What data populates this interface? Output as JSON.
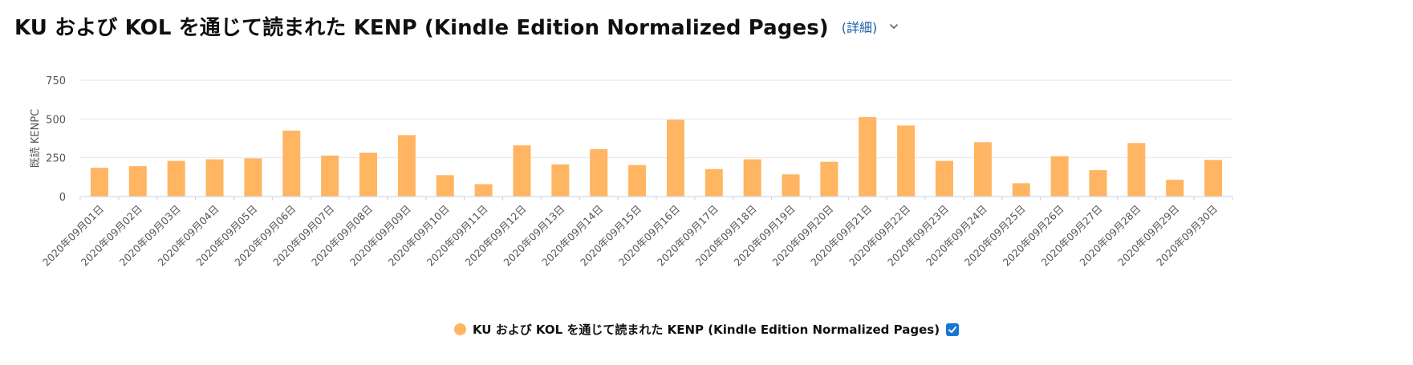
{
  "header": {
    "title": "KU および KOL を通じて読まれた KENP (Kindle Edition Normalized Pages)",
    "details_label": "(詳細)"
  },
  "colors": {
    "bar": "#ffb562",
    "grid": "#e6e6e6",
    "axis": "#c7d3e0",
    "text": "#555555",
    "link": "#1a5fa8",
    "check": "#1976d2"
  },
  "legend": {
    "label": "KU および KOL を通じて読まれた KENP (Kindle Edition Normalized Pages)",
    "checked": true
  },
  "chart_data": {
    "type": "bar",
    "ylabel": "既読 KENPC",
    "ylim": [
      0,
      750
    ],
    "yticks": [
      0,
      250,
      500,
      750
    ],
    "grid": true,
    "legend_position": "bottom",
    "categories": [
      "2020年09月01日",
      "2020年09月02日",
      "2020年09月03日",
      "2020年09月04日",
      "2020年09月05日",
      "2020年09月06日",
      "2020年09月07日",
      "2020年09月08日",
      "2020年09月09日",
      "2020年09月10日",
      "2020年09月11日",
      "2020年09月12日",
      "2020年09月13日",
      "2020年09月14日",
      "2020年09月15日",
      "2020年09月16日",
      "2020年09月17日",
      "2020年09月18日",
      "2020年09月19日",
      "2020年09月20日",
      "2020年09月21日",
      "2020年09月22日",
      "2020年09月23日",
      "2020年09月24日",
      "2020年09月25日",
      "2020年09月26日",
      "2020年09月27日",
      "2020年09月28日",
      "2020年09月29日",
      "2020年09月30日"
    ],
    "series": [
      {
        "name": "KU および KOL を通じて読まれた KENP (Kindle Edition Normalized Pages)",
        "values": [
          185,
          196,
          230,
          240,
          246,
          425,
          264,
          282,
          396,
          138,
          80,
          330,
          207,
          305,
          203,
          495,
          177,
          240,
          143,
          224,
          512,
          458,
          230,
          350,
          86,
          260,
          170,
          345,
          108,
          236
        ]
      }
    ]
  }
}
